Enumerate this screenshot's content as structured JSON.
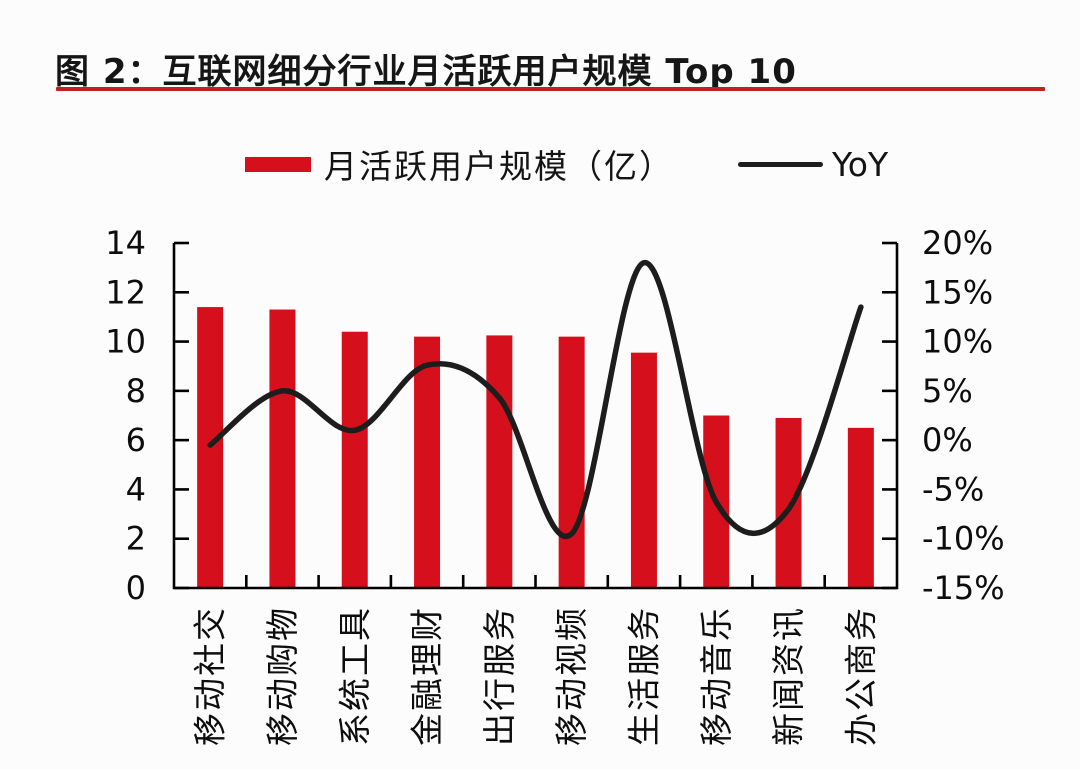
{
  "figure": {
    "title": "图 2：互联网细分行业月活跃用户规模 Top 10",
    "rule_color": "#c02020"
  },
  "legend": [
    {
      "type": "bar-swatch",
      "label": "月活跃用户规模（亿）",
      "color": "#d5101c"
    },
    {
      "type": "line-swatch",
      "label": "YoY",
      "color": "#1d1d1d"
    }
  ],
  "chart_data": {
    "type": "combo-bar-line",
    "title": "图 2：互联网细分行业月活跃用户规模 Top 10",
    "categories": [
      "移动社交",
      "移动购物",
      "系统工具",
      "金融理财",
      "出行服务",
      "移动视频",
      "生活服务",
      "移动音乐",
      "新闻资讯",
      "办公商务"
    ],
    "series": [
      {
        "name": "月活跃用户规模（亿）",
        "type": "bar",
        "axis": "left",
        "color": "#d5101c",
        "values": [
          11.4,
          11.3,
          10.4,
          10.2,
          10.25,
          10.2,
          9.55,
          7.0,
          6.9,
          6.5
        ]
      },
      {
        "name": "YoY",
        "type": "line",
        "axis": "right",
        "color": "#1d1d1d",
        "unit": "%",
        "values": [
          -0.5,
          5,
          1,
          7.6,
          4.3,
          -9.5,
          18,
          -6.3,
          -7,
          13.5
        ]
      }
    ],
    "left_axis": {
      "ticks": [
        0,
        2,
        4,
        6,
        8,
        10,
        12,
        14
      ],
      "range": [
        0,
        14
      ]
    },
    "right_axis": {
      "ticks": [
        20,
        15,
        10,
        5,
        0,
        -5,
        -10,
        -15
      ],
      "tick_labels": [
        "20%",
        "15%",
        "10%",
        "5%",
        "0%",
        "-5%",
        "-10%",
        "-15%"
      ],
      "range": [
        -15,
        20
      ]
    },
    "grid": false,
    "legend_position": "top-center",
    "x_label_rotation": -90,
    "axis_color": "#000000"
  }
}
